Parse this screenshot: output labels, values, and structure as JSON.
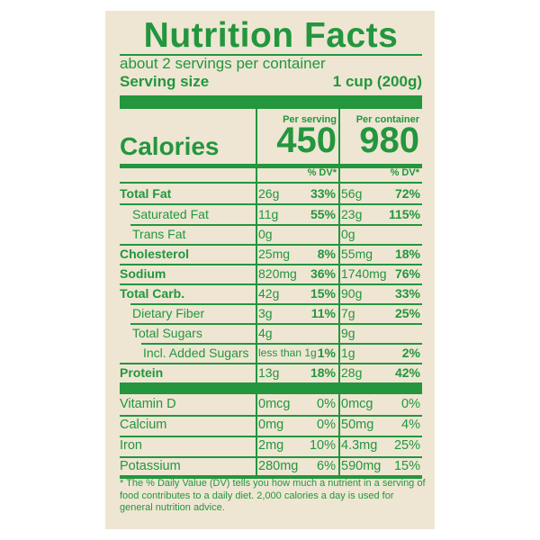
{
  "label": {
    "title": "Nutrition Facts",
    "servings_per_container": "about 2 servings per container",
    "serving_size_label": "Serving size",
    "serving_size_value": "1 cup (200g)",
    "col_per_serving": "Per serving",
    "col_per_container": "Per container",
    "calories_label": "Calories",
    "calories_serving": "450",
    "calories_container": "980",
    "dv_head": "% DV*"
  },
  "nutrients": [
    {
      "name": "Total Fat",
      "a1": "26g",
      "p1": "33%",
      "a2": "56g",
      "p2": "72%"
    },
    {
      "name": "Saturated Fat",
      "a1": "11g",
      "p1": "55%",
      "a2": "23g",
      "p2": "115%"
    },
    {
      "name": "Trans Fat",
      "a1": "0g",
      "p1": "",
      "a2": "0g",
      "p2": ""
    },
    {
      "name": "Cholesterol",
      "a1": "25mg",
      "p1": "8%",
      "a2": "55mg",
      "p2": "18%"
    },
    {
      "name": "Sodium",
      "a1": "820mg",
      "p1": "36%",
      "a2": "1740mg",
      "p2": "76%"
    },
    {
      "name": "Total Carb.",
      "a1": "42g",
      "p1": "15%",
      "a2": "90g",
      "p2": "33%"
    },
    {
      "name": "Dietary Fiber",
      "a1": "3g",
      "p1": "11%",
      "a2": "7g",
      "p2": "25%"
    },
    {
      "name": "Total Sugars",
      "a1": "4g",
      "p1": "",
      "a2": "9g",
      "p2": ""
    },
    {
      "name": "Incl. Added Sugars",
      "a1": "less than 1g",
      "p1": "1%",
      "a2": "1g",
      "p2": "2%"
    },
    {
      "name": "Protein",
      "a1": "13g",
      "p1": "18%",
      "a2": "28g",
      "p2": "42%"
    }
  ],
  "vitamins": [
    {
      "name": "Vitamin D",
      "a1": "0mcg",
      "p1": "0%",
      "a2": "0mcg",
      "p2": "0%"
    },
    {
      "name": "Calcium",
      "a1": "0mg",
      "p1": "0%",
      "a2": "50mg",
      "p2": "4%"
    },
    {
      "name": "Iron",
      "a1": "2mg",
      "p1": "10%",
      "a2": "4.3mg",
      "p2": "25%"
    },
    {
      "name": "Potassium",
      "a1": "280mg",
      "p1": "6%",
      "a2": "590mg",
      "p2": "15%"
    }
  ],
  "footnote": "* The % Daily Value (DV) tells you how much a nutrient in a serving of food contributes to a daily diet. 2,000 calories a day is used for general nutrition advice.",
  "colors": {
    "ink": "#23963e",
    "panel": "#eee6d2"
  }
}
